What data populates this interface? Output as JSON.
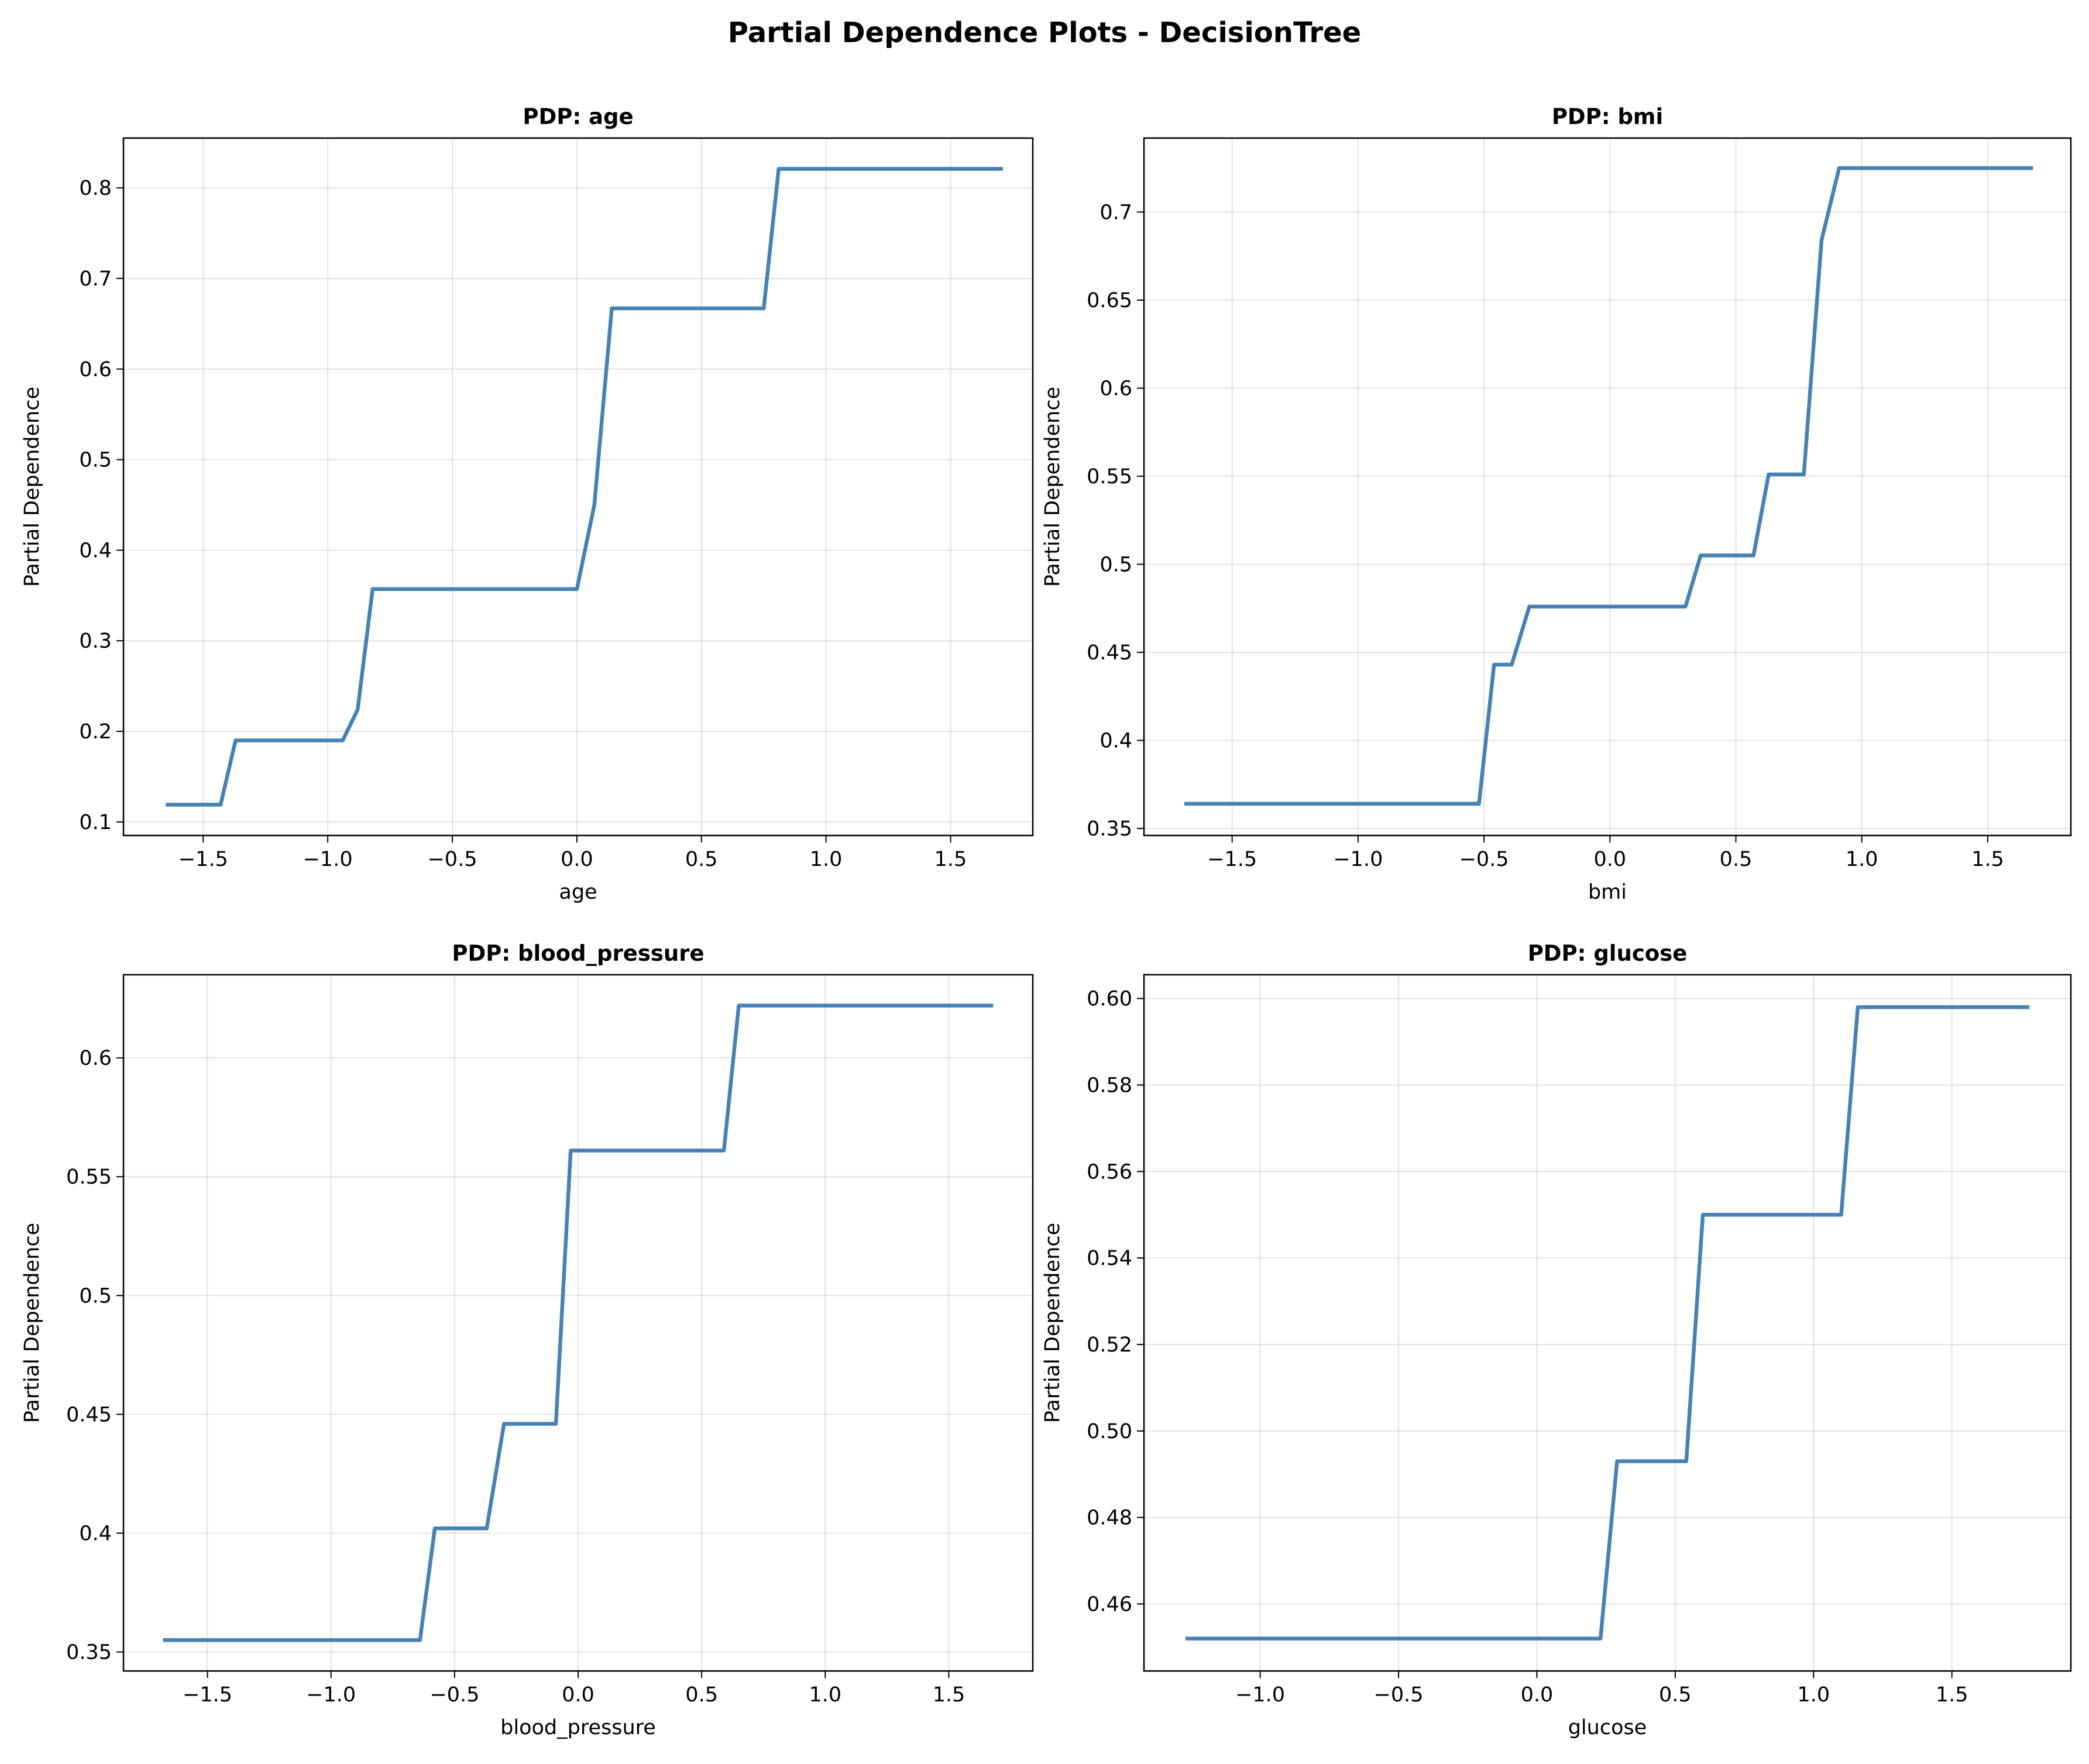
{
  "figure": {
    "title": "Partial Dependence Plots - DecisionTree",
    "line_color": "#4682b4"
  },
  "chart_data": [
    {
      "type": "line",
      "title": "PDP: age",
      "xlabel": "age",
      "ylabel": "Partial Dependence",
      "xlim": [
        -1.82,
        1.83
      ],
      "ylim": [
        0.085,
        0.855
      ],
      "xticks": [
        -1.5,
        -1.0,
        -0.5,
        0.0,
        0.5,
        1.0,
        1.5
      ],
      "yticks": [
        0.1,
        0.2,
        0.3,
        0.4,
        0.5,
        0.6,
        0.7,
        0.8
      ],
      "grid": true,
      "x": [
        -1.65,
        -1.43,
        -1.37,
        -0.94,
        -0.88,
        -0.82,
        0.0,
        0.07,
        0.14,
        0.75,
        0.81,
        1.71
      ],
      "y": [
        0.119,
        0.119,
        0.19,
        0.19,
        0.224,
        0.357,
        0.357,
        0.45,
        0.667,
        0.667,
        0.821,
        0.821
      ]
    },
    {
      "type": "line",
      "title": "PDP: bmi",
      "xlabel": "bmi",
      "ylabel": "Partial Dependence",
      "xlim": [
        -1.85,
        1.83
      ],
      "ylim": [
        0.346,
        0.742
      ],
      "xticks": [
        -1.5,
        -1.0,
        -0.5,
        0.0,
        0.5,
        1.0,
        1.5
      ],
      "yticks": [
        0.35,
        0.4,
        0.45,
        0.5,
        0.55,
        0.6,
        0.65,
        0.7
      ],
      "grid": true,
      "x": [
        -1.69,
        -0.52,
        -0.46,
        -0.39,
        -0.32,
        0.3,
        0.36,
        0.57,
        0.63,
        0.77,
        0.84,
        0.91,
        1.68
      ],
      "y": [
        0.364,
        0.364,
        0.443,
        0.443,
        0.476,
        0.476,
        0.505,
        0.505,
        0.551,
        0.551,
        0.684,
        0.725,
        0.725
      ]
    },
    {
      "type": "line",
      "title": "PDP: blood_pressure",
      "xlabel": "blood_pressure",
      "ylabel": "Partial Dependence",
      "xlim": [
        -1.84,
        1.84
      ],
      "ylim": [
        0.342,
        0.635
      ],
      "xticks": [
        -1.5,
        -1.0,
        -0.5,
        0.0,
        0.5,
        1.0,
        1.5
      ],
      "yticks": [
        0.35,
        0.4,
        0.45,
        0.5,
        0.55,
        0.6
      ],
      "grid": true,
      "x": [
        -1.68,
        -0.64,
        -0.58,
        -0.37,
        -0.3,
        -0.09,
        -0.03,
        0.59,
        0.65,
        1.68
      ],
      "y": [
        0.355,
        0.355,
        0.402,
        0.402,
        0.446,
        0.446,
        0.561,
        0.561,
        0.622,
        0.622
      ]
    },
    {
      "type": "line",
      "title": "PDP: glucose",
      "xlabel": "glucose",
      "ylabel": "Partial Dependence",
      "xlim": [
        -1.42,
        1.93
      ],
      "ylim": [
        0.4445,
        0.6055
      ],
      "xticks": [
        -1.0,
        -0.5,
        0.0,
        0.5,
        1.0,
        1.5
      ],
      "yticks": [
        0.46,
        0.48,
        0.5,
        0.52,
        0.54,
        0.56,
        0.58,
        0.6
      ],
      "grid": true,
      "x": [
        -1.27,
        0.23,
        0.29,
        0.54,
        0.6,
        1.1,
        1.16,
        1.78
      ],
      "y": [
        0.452,
        0.452,
        0.493,
        0.493,
        0.55,
        0.55,
        0.598,
        0.598
      ]
    }
  ]
}
